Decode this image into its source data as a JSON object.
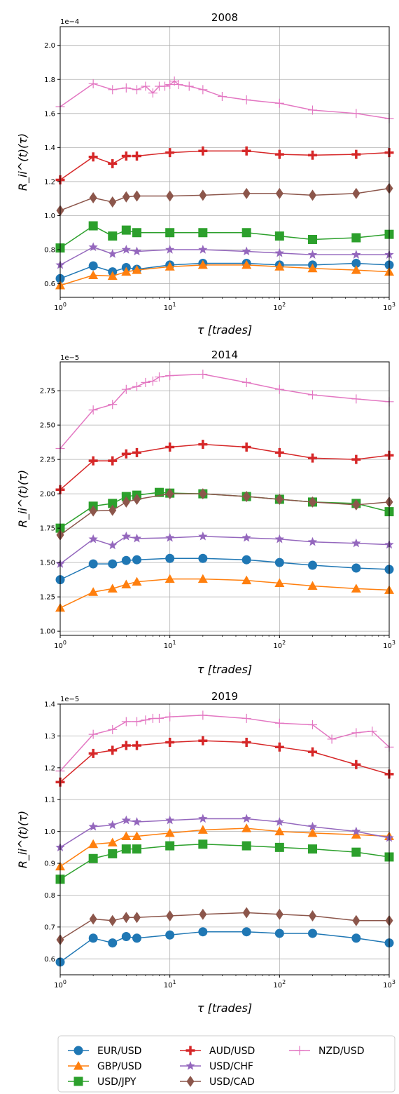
{
  "chart_data": [
    {
      "type": "line",
      "title": "2008",
      "xlabel": "τ [trades]",
      "ylabel": "R_ii^(t)(τ)",
      "x_scale": "log",
      "xlim": [
        1,
        1000
      ],
      "ylim": [
        0.52,
        2.11
      ],
      "y_multiplier": "1e−4",
      "yticks": [
        0.6,
        0.8,
        1.0,
        1.2,
        1.4,
        1.6,
        1.8,
        2.0
      ],
      "ytick_labels": [
        "0.6",
        "0.8",
        "1.0",
        "1.2",
        "1.4",
        "1.6",
        "1.8",
        "2.0"
      ],
      "grid": true,
      "series": [
        {
          "name": "EUR/USD",
          "color": "#1f77b4",
          "marker": "circle",
          "x": [
            1,
            2,
            3,
            4,
            5,
            10,
            20,
            50,
            100,
            200,
            500,
            1000
          ],
          "values": [
            0.63,
            0.705,
            0.67,
            0.695,
            0.685,
            0.71,
            0.72,
            0.72,
            0.71,
            0.71,
            0.72,
            0.71
          ]
        },
        {
          "name": "GBP/USD",
          "color": "#ff7f0e",
          "marker": "triangle",
          "x": [
            1,
            2,
            3,
            4,
            5,
            10,
            20,
            50,
            100,
            200,
            500,
            1000
          ],
          "values": [
            0.59,
            0.65,
            0.645,
            0.67,
            0.68,
            0.7,
            0.71,
            0.71,
            0.7,
            0.69,
            0.68,
            0.67
          ]
        },
        {
          "name": "USD/JPY",
          "color": "#2ca02c",
          "marker": "square",
          "x": [
            1,
            2,
            3,
            4,
            5,
            10,
            20,
            50,
            100,
            200,
            500,
            1000
          ],
          "values": [
            0.81,
            0.94,
            0.88,
            0.915,
            0.9,
            0.9,
            0.9,
            0.9,
            0.88,
            0.86,
            0.87,
            0.89
          ]
        },
        {
          "name": "AUD/USD",
          "color": "#d62728",
          "marker": "plus",
          "x": [
            1,
            2,
            3,
            4,
            5,
            10,
            20,
            50,
            100,
            200,
            500,
            1000
          ],
          "values": [
            1.21,
            1.345,
            1.305,
            1.35,
            1.35,
            1.37,
            1.38,
            1.38,
            1.36,
            1.355,
            1.36,
            1.37
          ]
        },
        {
          "name": "USD/CHF",
          "color": "#9467bd",
          "marker": "star",
          "x": [
            1,
            2,
            3,
            4,
            5,
            10,
            20,
            50,
            100,
            200,
            500,
            1000
          ],
          "values": [
            0.71,
            0.815,
            0.775,
            0.8,
            0.79,
            0.8,
            0.8,
            0.79,
            0.78,
            0.77,
            0.77,
            0.77
          ]
        },
        {
          "name": "USD/CAD",
          "color": "#8c564b",
          "marker": "diamond",
          "x": [
            1,
            2,
            3,
            4,
            5,
            10,
            20,
            50,
            100,
            200,
            500,
            1000
          ],
          "values": [
            1.03,
            1.105,
            1.08,
            1.11,
            1.115,
            1.115,
            1.12,
            1.13,
            1.13,
            1.12,
            1.13,
            1.16
          ]
        },
        {
          "name": "NZD/USD",
          "color": "#e377c2",
          "marker": "thin-plus",
          "x": [
            1,
            2,
            3,
            4,
            5,
            6,
            7,
            8,
            9,
            10,
            11,
            12,
            15,
            20,
            30,
            50,
            100,
            200,
            500,
            1000
          ],
          "values": [
            1.64,
            1.775,
            1.74,
            1.75,
            1.74,
            1.76,
            1.72,
            1.76,
            1.76,
            1.77,
            1.79,
            1.77,
            1.76,
            1.74,
            1.7,
            1.68,
            1.66,
            1.62,
            1.6,
            1.57
          ]
        }
      ]
    },
    {
      "type": "line",
      "title": "2014",
      "xlabel": "τ [trades]",
      "ylabel": "R_ii^(t)(τ)",
      "x_scale": "log",
      "xlim": [
        1,
        1000
      ],
      "ylim": [
        0.97,
        2.96
      ],
      "y_multiplier": "1e−5",
      "yticks": [
        1.0,
        1.25,
        1.5,
        1.75,
        2.0,
        2.25,
        2.5,
        2.75
      ],
      "ytick_labels": [
        "1.00",
        "1.25",
        "1.50",
        "1.75",
        "2.00",
        "2.25",
        "2.50",
        "2.75"
      ],
      "grid": true,
      "series": [
        {
          "name": "EUR/USD",
          "color": "#1f77b4",
          "marker": "circle",
          "x": [
            1,
            2,
            3,
            4,
            5,
            10,
            20,
            50,
            100,
            200,
            500,
            1000
          ],
          "values": [
            1.375,
            1.49,
            1.49,
            1.515,
            1.52,
            1.53,
            1.53,
            1.52,
            1.5,
            1.48,
            1.46,
            1.45
          ]
        },
        {
          "name": "GBP/USD",
          "color": "#ff7f0e",
          "marker": "triangle",
          "x": [
            1,
            2,
            3,
            4,
            5,
            10,
            20,
            50,
            100,
            200,
            500,
            1000
          ],
          "values": [
            1.17,
            1.285,
            1.31,
            1.34,
            1.36,
            1.38,
            1.38,
            1.37,
            1.35,
            1.33,
            1.31,
            1.3
          ]
        },
        {
          "name": "USD/JPY",
          "color": "#2ca02c",
          "marker": "square",
          "x": [
            1,
            2,
            3,
            4,
            5,
            8,
            10,
            20,
            50,
            100,
            200,
            500,
            1000
          ],
          "values": [
            1.75,
            1.91,
            1.93,
            1.98,
            1.99,
            2.01,
            2.005,
            2.0,
            1.98,
            1.96,
            1.94,
            1.93,
            1.87
          ]
        },
        {
          "name": "AUD/USD",
          "color": "#d62728",
          "marker": "plus",
          "x": [
            1,
            2,
            3,
            4,
            5,
            10,
            20,
            50,
            100,
            200,
            500,
            1000
          ],
          "values": [
            2.03,
            2.24,
            2.24,
            2.29,
            2.3,
            2.34,
            2.36,
            2.34,
            2.3,
            2.26,
            2.25,
            2.28
          ]
        },
        {
          "name": "USD/CHF",
          "color": "#9467bd",
          "marker": "star",
          "x": [
            1,
            2,
            3,
            4,
            5,
            10,
            20,
            50,
            100,
            200,
            500,
            1000
          ],
          "values": [
            1.49,
            1.67,
            1.625,
            1.69,
            1.675,
            1.68,
            1.69,
            1.68,
            1.67,
            1.65,
            1.64,
            1.63
          ]
        },
        {
          "name": "USD/CAD",
          "color": "#8c564b",
          "marker": "diamond",
          "x": [
            1,
            2,
            3,
            4,
            5,
            10,
            20,
            50,
            100,
            200,
            500,
            1000
          ],
          "values": [
            1.7,
            1.875,
            1.88,
            1.94,
            1.96,
            2.0,
            2.0,
            1.98,
            1.96,
            1.94,
            1.92,
            1.94
          ]
        },
        {
          "name": "NZD/USD",
          "color": "#e377c2",
          "marker": "thin-plus",
          "x": [
            1,
            2,
            3,
            4,
            5,
            6,
            7,
            8,
            10,
            20,
            50,
            100,
            200,
            500,
            1000
          ],
          "values": [
            2.33,
            2.61,
            2.65,
            2.76,
            2.78,
            2.81,
            2.82,
            2.85,
            2.86,
            2.87,
            2.81,
            2.76,
            2.72,
            2.69,
            2.67
          ]
        }
      ]
    },
    {
      "type": "line",
      "title": "2019",
      "xlabel": "τ [trades]",
      "ylabel": "R_ii^(t)(τ)",
      "x_scale": "log",
      "xlim": [
        1,
        1000
      ],
      "ylim": [
        0.55,
        1.4
      ],
      "y_multiplier": "1e−5",
      "yticks": [
        0.6,
        0.7,
        0.8,
        0.9,
        1.0,
        1.1,
        1.2,
        1.3,
        1.4
      ],
      "ytick_labels": [
        "0.6",
        "0.7",
        "0.8",
        "0.9",
        "1.0",
        "1.1",
        "1.2",
        "1.3",
        "1.4"
      ],
      "grid": true,
      "series": [
        {
          "name": "EUR/USD",
          "color": "#1f77b4",
          "marker": "circle",
          "x": [
            1,
            2,
            3,
            4,
            5,
            10,
            20,
            50,
            100,
            200,
            500,
            1000
          ],
          "values": [
            0.59,
            0.665,
            0.65,
            0.67,
            0.665,
            0.675,
            0.685,
            0.685,
            0.68,
            0.68,
            0.665,
            0.65
          ]
        },
        {
          "name": "GBP/USD",
          "color": "#ff7f0e",
          "marker": "triangle",
          "x": [
            1,
            2,
            3,
            4,
            5,
            10,
            20,
            50,
            100,
            200,
            500,
            1000
          ],
          "values": [
            0.89,
            0.96,
            0.965,
            0.985,
            0.985,
            0.995,
            1.005,
            1.01,
            1.0,
            0.995,
            0.99,
            0.985
          ]
        },
        {
          "name": "USD/JPY",
          "color": "#2ca02c",
          "marker": "square",
          "x": [
            1,
            2,
            3,
            4,
            5,
            10,
            20,
            50,
            100,
            200,
            500,
            1000
          ],
          "values": [
            0.85,
            0.915,
            0.93,
            0.945,
            0.945,
            0.955,
            0.96,
            0.955,
            0.95,
            0.945,
            0.935,
            0.92
          ]
        },
        {
          "name": "AUD/USD",
          "color": "#d62728",
          "marker": "plus",
          "x": [
            1,
            2,
            3,
            4,
            5,
            10,
            20,
            50,
            100,
            200,
            500,
            1000
          ],
          "values": [
            1.155,
            1.245,
            1.255,
            1.27,
            1.27,
            1.28,
            1.285,
            1.28,
            1.265,
            1.25,
            1.21,
            1.18
          ]
        },
        {
          "name": "USD/CHF",
          "color": "#9467bd",
          "marker": "star",
          "x": [
            1,
            2,
            3,
            4,
            5,
            10,
            20,
            50,
            100,
            200,
            500,
            1000
          ],
          "values": [
            0.95,
            1.015,
            1.02,
            1.035,
            1.03,
            1.035,
            1.04,
            1.04,
            1.03,
            1.015,
            1.0,
            0.98
          ]
        },
        {
          "name": "USD/CAD",
          "color": "#8c564b",
          "marker": "diamond",
          "x": [
            1,
            2,
            3,
            4,
            5,
            10,
            20,
            50,
            100,
            200,
            500,
            1000
          ],
          "values": [
            0.66,
            0.725,
            0.72,
            0.73,
            0.73,
            0.735,
            0.74,
            0.745,
            0.74,
            0.735,
            0.72,
            0.72
          ]
        },
        {
          "name": "NZD/USD",
          "color": "#e377c2",
          "marker": "thin-plus",
          "x": [
            1,
            2,
            3,
            4,
            5,
            6,
            7,
            8,
            10,
            20,
            50,
            100,
            200,
            300,
            500,
            700,
            1000
          ],
          "values": [
            1.19,
            1.305,
            1.32,
            1.345,
            1.345,
            1.35,
            1.355,
            1.355,
            1.36,
            1.365,
            1.355,
            1.34,
            1.335,
            1.29,
            1.31,
            1.315,
            1.265
          ]
        }
      ]
    }
  ],
  "legend": {
    "placement": "bottom-center",
    "columns": 3,
    "entries": [
      {
        "name": "EUR/USD",
        "color": "#1f77b4",
        "marker": "circle"
      },
      {
        "name": "GBP/USD",
        "color": "#ff7f0e",
        "marker": "triangle"
      },
      {
        "name": "USD/JPY",
        "color": "#2ca02c",
        "marker": "square"
      },
      {
        "name": "AUD/USD",
        "color": "#d62728",
        "marker": "plus"
      },
      {
        "name": "USD/CHF",
        "color": "#9467bd",
        "marker": "star"
      },
      {
        "name": "USD/CAD",
        "color": "#8c564b",
        "marker": "diamond"
      },
      {
        "name": "NZD/USD",
        "color": "#e377c2",
        "marker": "thin-plus"
      }
    ]
  }
}
